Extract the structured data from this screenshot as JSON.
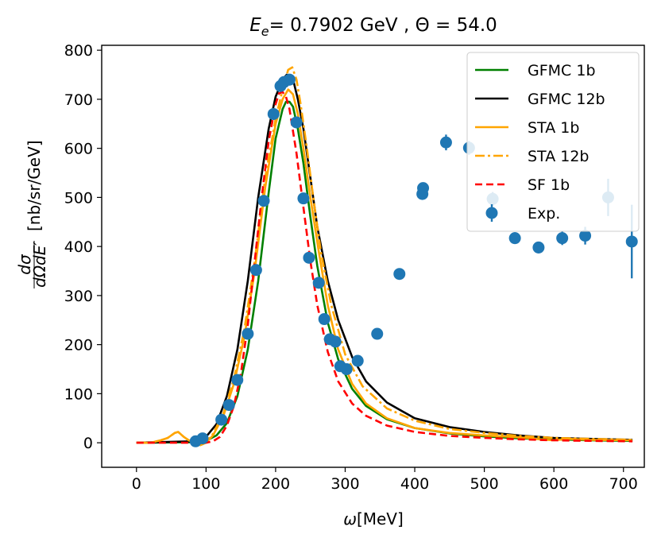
{
  "chart_data": {
    "type": "line",
    "title": {
      "prefix": "E",
      "subscript": "e",
      "rest": "= 0.7902 GeV , Θ = 54.0"
    },
    "xlabel": {
      "symbol": "ω",
      "unit": "[MeV]"
    },
    "ylabel": {
      "fraction_numerator": "dσ",
      "fraction_denominator": "dΩdE′",
      "unit": "[nb/sr/GeV]"
    },
    "xlim": [
      -50,
      730
    ],
    "ylim": [
      -50,
      810
    ],
    "xticks": [
      0,
      100,
      200,
      300,
      400,
      500,
      600,
      700
    ],
    "yticks": [
      0,
      100,
      200,
      300,
      400,
      500,
      600,
      700,
      800
    ],
    "legend_position": "upper right",
    "series": [
      {
        "name": "GFMC 1b",
        "color": "#008000",
        "style": "solid",
        "x": [
          0,
          80,
          100,
          115,
          130,
          145,
          160,
          175,
          190,
          200,
          210,
          215,
          220,
          225,
          232,
          240,
          250,
          260,
          275,
          290,
          310,
          330,
          360,
          400,
          450,
          500,
          550,
          600,
          650,
          713
        ],
        "y": [
          0,
          1,
          4,
          15,
          40,
          95,
          190,
          330,
          510,
          620,
          680,
          695,
          695,
          685,
          640,
          570,
          460,
          360,
          245,
          170,
          110,
          75,
          48,
          30,
          19,
          13,
          9,
          7,
          5,
          4
        ]
      },
      {
        "name": "GFMC 12b",
        "color": "#000000",
        "style": "solid",
        "x": [
          0,
          80,
          100,
          115,
          130,
          145,
          160,
          175,
          190,
          200,
          210,
          216,
          220,
          226,
          232,
          240,
          250,
          260,
          275,
          290,
          310,
          330,
          360,
          400,
          450,
          500,
          550,
          600,
          650,
          713
        ],
        "y": [
          0,
          3,
          12,
          38,
          95,
          190,
          330,
          500,
          640,
          705,
          740,
          750,
          748,
          735,
          700,
          640,
          540,
          440,
          330,
          250,
          175,
          125,
          82,
          50,
          32,
          22,
          15,
          10,
          8,
          6
        ]
      },
      {
        "name": "STA 1b",
        "color": "#ffa500",
        "style": "solid",
        "x": [
          0,
          20,
          35,
          45,
          55,
          60,
          68,
          75,
          85,
          92,
          100,
          110,
          125,
          140,
          155,
          170,
          185,
          200,
          210,
          218,
          225,
          232,
          240,
          250,
          262,
          275,
          290,
          310,
          330,
          360,
          400,
          450,
          500,
          540,
          560,
          580,
          600,
          620,
          650,
          713
        ],
        "y": [
          0,
          0,
          5,
          10,
          20,
          22,
          12,
          5,
          0,
          -5,
          0,
          15,
          55,
          120,
          215,
          350,
          520,
          650,
          700,
          720,
          710,
          670,
          600,
          500,
          390,
          280,
          190,
          120,
          80,
          50,
          30,
          20,
          15,
          12,
          10,
          7,
          5,
          8,
          6,
          5
        ]
      },
      {
        "name": "STA 12b",
        "color": "#ffa500",
        "style": "dashdot",
        "x": [
          0,
          20,
          35,
          45,
          55,
          60,
          68,
          75,
          85,
          92,
          100,
          110,
          125,
          140,
          155,
          170,
          185,
          200,
          210,
          218,
          224,
          230,
          236,
          245,
          255,
          265,
          280,
          300,
          325,
          360,
          400,
          450,
          500,
          550,
          600,
          650,
          713
        ],
        "y": [
          0,
          0,
          5,
          10,
          20,
          22,
          12,
          5,
          0,
          -5,
          2,
          18,
          60,
          130,
          230,
          370,
          540,
          660,
          720,
          760,
          765,
          740,
          690,
          600,
          490,
          390,
          280,
          180,
          115,
          70,
          45,
          28,
          20,
          14,
          10,
          8,
          6
        ]
      },
      {
        "name": "SF 1b",
        "color": "#ff0000",
        "style": "dashed",
        "x": [
          0,
          100,
          110,
          120,
          130,
          140,
          150,
          160,
          170,
          180,
          190,
          200,
          205,
          210,
          215,
          220,
          230,
          240,
          250,
          260,
          275,
          290,
          310,
          330,
          360,
          400,
          450,
          500,
          550,
          600,
          650,
          713
        ],
        "y": [
          0,
          0,
          3,
          12,
          35,
          75,
          140,
          240,
          370,
          500,
          615,
          690,
          712,
          715,
          705,
          680,
          590,
          480,
          370,
          280,
          185,
          125,
          80,
          55,
          35,
          22,
          14,
          10,
          7,
          5,
          4,
          3
        ]
      }
    ],
    "experiment": {
      "name": "Exp.",
      "color": "#1f77b4",
      "points": [
        {
          "x": 85,
          "y": 3,
          "err": 3
        },
        {
          "x": 95,
          "y": 9,
          "err": 4
        },
        {
          "x": 122,
          "y": 47,
          "err": 5
        },
        {
          "x": 133,
          "y": 77,
          "err": 5
        },
        {
          "x": 145,
          "y": 128,
          "err": 6
        },
        {
          "x": 160,
          "y": 222,
          "err": 8
        },
        {
          "x": 172,
          "y": 352,
          "err": 8
        },
        {
          "x": 183,
          "y": 493,
          "err": 10
        },
        {
          "x": 197,
          "y": 670,
          "err": 12
        },
        {
          "x": 207,
          "y": 727,
          "err": 12
        },
        {
          "x": 212,
          "y": 735,
          "err": 12
        },
        {
          "x": 220,
          "y": 740,
          "err": 12
        },
        {
          "x": 230,
          "y": 653,
          "err": 12
        },
        {
          "x": 240,
          "y": 498,
          "err": 10
        },
        {
          "x": 248,
          "y": 377,
          "err": 8
        },
        {
          "x": 262,
          "y": 326,
          "err": 8
        },
        {
          "x": 270,
          "y": 252,
          "err": 7
        },
        {
          "x": 278,
          "y": 211,
          "err": 7
        },
        {
          "x": 286,
          "y": 206,
          "err": 7
        },
        {
          "x": 293,
          "y": 156,
          "err": 6
        },
        {
          "x": 302,
          "y": 150,
          "err": 6
        },
        {
          "x": 318,
          "y": 167,
          "err": 6
        },
        {
          "x": 346,
          "y": 222,
          "err": 7
        },
        {
          "x": 378,
          "y": 344,
          "err": 8
        },
        {
          "x": 411,
          "y": 507,
          "err": 10
        },
        {
          "x": 412,
          "y": 519,
          "err": 10
        },
        {
          "x": 445,
          "y": 612,
          "err": 16
        },
        {
          "x": 478,
          "y": 601,
          "err": 14
        },
        {
          "x": 512,
          "y": 497,
          "err": 14
        },
        {
          "x": 544,
          "y": 417,
          "err": 12
        },
        {
          "x": 578,
          "y": 398,
          "err": 12
        },
        {
          "x": 612,
          "y": 417,
          "err": 14
        },
        {
          "x": 645,
          "y": 422,
          "err": 18
        },
        {
          "x": 678,
          "y": 500,
          "err": 38
        },
        {
          "x": 712,
          "y": 410,
          "err": 75
        }
      ]
    }
  }
}
